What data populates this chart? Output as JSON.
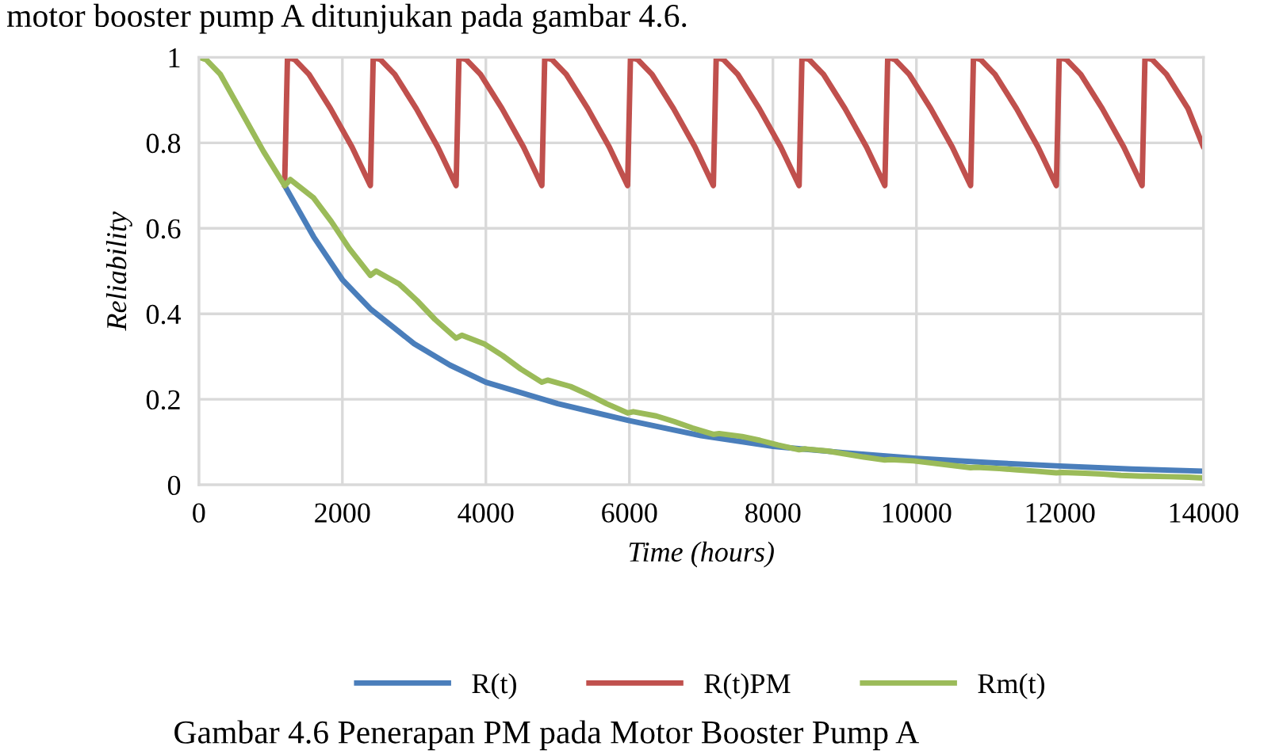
{
  "chart_data": {
    "type": "line",
    "xlabel": "Time (hours)",
    "ylabel": "Reliability",
    "xlim": [
      0,
      14000
    ],
    "xticks": [
      0,
      2000,
      4000,
      6000,
      8000,
      10000,
      12000,
      14000
    ],
    "ylim": [
      0,
      1
    ],
    "yticks": [
      0,
      0.2,
      0.4,
      0.6,
      0.8,
      1
    ],
    "grid": true,
    "legend": "bottom",
    "marker": "none",
    "line_style": "solid",
    "annotations": [
      "motor booster pump A ditunjukan pada gambar 4.6.",
      "Gambar 4.6 Penerapan PM pada Motor Booster Pump A"
    ],
    "series": [
      {
        "name": "R(t)",
        "color": "#4a7ebb",
        "x": [
          1195,
          1600,
          2000,
          2400,
          3000,
          3500,
          4000,
          5000,
          6000,
          7000,
          8000,
          9000,
          10000,
          11000,
          12000,
          13000,
          14000
        ],
        "values": [
          0.7,
          0.58,
          0.48,
          0.41,
          0.33,
          0.28,
          0.24,
          0.19,
          0.15,
          0.115,
          0.09,
          0.075,
          0.062,
          0.052,
          0.044,
          0.037,
          0.032
        ]
      },
      {
        "name": "R(t)PM",
        "color": "#c0504d",
        "x": [
          1195,
          1235,
          1335,
          1535,
          1835,
          2135,
          2390,
          2430,
          2530,
          2730,
          3030,
          3330,
          3585,
          3625,
          3725,
          3925,
          4225,
          4525,
          4780,
          4820,
          4920,
          5120,
          5420,
          5720,
          5975,
          6015,
          6115,
          6315,
          6615,
          6915,
          7170,
          7210,
          7310,
          7510,
          7810,
          8110,
          8365,
          8405,
          8505,
          8705,
          9005,
          9305,
          9560,
          9600,
          9700,
          9900,
          10200,
          10500,
          10755,
          10795,
          10895,
          11095,
          11395,
          11695,
          11950,
          11990,
          12090,
          12290,
          12590,
          12890,
          13145,
          13185,
          13285,
          13485,
          13785,
          14000
        ],
        "values": [
          0.7,
          1,
          0.995,
          0.96,
          0.88,
          0.79,
          0.7,
          1,
          0.995,
          0.96,
          0.88,
          0.79,
          0.7,
          1,
          0.995,
          0.96,
          0.88,
          0.79,
          0.7,
          1,
          0.995,
          0.96,
          0.88,
          0.79,
          0.7,
          1,
          0.995,
          0.96,
          0.88,
          0.79,
          0.7,
          1,
          0.995,
          0.96,
          0.88,
          0.79,
          0.7,
          1,
          0.995,
          0.96,
          0.88,
          0.79,
          0.7,
          1,
          0.995,
          0.96,
          0.88,
          0.79,
          0.7,
          1,
          0.995,
          0.96,
          0.88,
          0.79,
          0.7,
          1,
          0.995,
          0.96,
          0.88,
          0.79,
          0.7,
          1,
          0.995,
          0.96,
          0.88,
          0.79
        ]
      },
      {
        "name": "Rm(t)",
        "color": "#9bbb59",
        "x": [
          0,
          100,
          300,
          600,
          900,
          1195,
          1275,
          1595,
          1845,
          2095,
          2390,
          2470,
          2790,
          3040,
          3290,
          3585,
          3665,
          3985,
          4235,
          4485,
          4780,
          4860,
          5180,
          5430,
          5680,
          5975,
          6055,
          6375,
          6625,
          6875,
          7170,
          7250,
          7570,
          7820,
          8070,
          8365,
          8445,
          8765,
          9015,
          9265,
          9560,
          9640,
          9960,
          10210,
          10460,
          10755,
          10835,
          11155,
          11405,
          11655,
          11950,
          12030,
          12350,
          12600,
          12850,
          13145,
          13225,
          13545,
          13795,
          14000
        ],
        "values": [
          1,
          0.995,
          0.96,
          0.87,
          0.78,
          0.7,
          0.714,
          0.672,
          0.616,
          0.553,
          0.49,
          0.5,
          0.47,
          0.431,
          0.387,
          0.343,
          0.35,
          0.329,
          0.302,
          0.271,
          0.24,
          0.245,
          0.23,
          0.211,
          0.19,
          0.168,
          0.171,
          0.161,
          0.148,
          0.133,
          0.118,
          0.12,
          0.113,
          0.104,
          0.093,
          0.082,
          0.084,
          0.079,
          0.072,
          0.065,
          0.058,
          0.059,
          0.056,
          0.051,
          0.046,
          0.04,
          0.041,
          0.038,
          0.035,
          0.032,
          0.028,
          0.029,
          0.027,
          0.025,
          0.022,
          0.02,
          0.02,
          0.019,
          0.018,
          0.016
        ]
      }
    ]
  }
}
